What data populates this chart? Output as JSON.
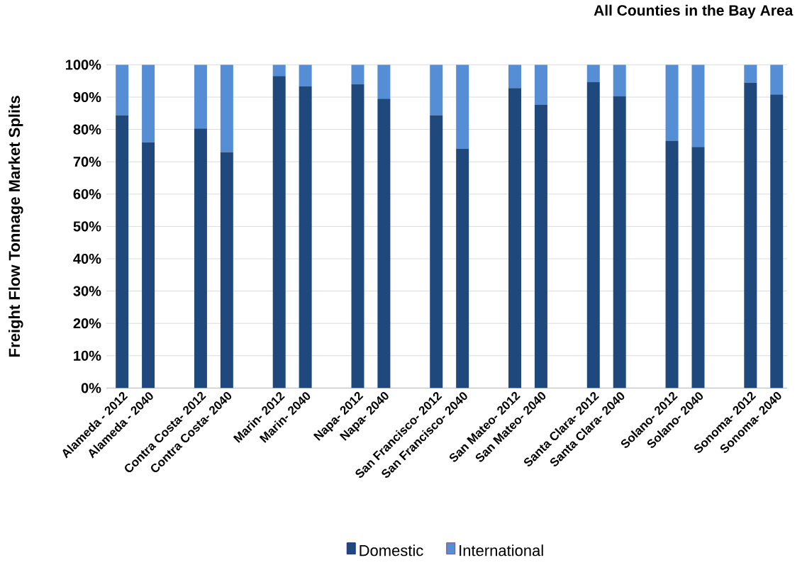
{
  "chart_data": {
    "type": "bar",
    "title": "All Counties in the Bay Area",
    "ylabel": "Freight Flow Tonnage Market Splits",
    "categories": [
      "Alameda - 2012",
      "Alameda - 2040",
      null,
      "Contra Costa- 2012",
      "Contra Costa- 2040",
      null,
      "Marin- 2012",
      "Marin- 2040",
      null,
      "Napa- 2012",
      "Napa- 2040",
      null,
      "San Francisco- 2012",
      "San Francisco- 2040",
      null,
      "San Mateo- 2012",
      "San Mateo- 2040",
      null,
      "Santa Clara- 2012",
      "Santa Clara- 2040",
      null,
      "Solano- 2012",
      "Solano- 2040",
      null,
      "Sonoma- 2012",
      "Sonoma- 2040"
    ],
    "series": [
      {
        "name": "Domestic",
        "color": "#1f497d",
        "values": [
          84.4,
          76,
          null,
          80.3,
          73,
          null,
          96.5,
          93.4,
          null,
          94,
          89.5,
          null,
          84.4,
          74,
          null,
          92.8,
          87.7,
          null,
          94.7,
          90.3,
          null,
          76.5,
          74.6,
          null,
          94.5,
          90.8
        ]
      },
      {
        "name": "International",
        "color": "#558ed5",
        "values": [
          15.6,
          24,
          null,
          19.7,
          27,
          null,
          3.5,
          6.6,
          null,
          6,
          10.5,
          null,
          15.6,
          26,
          null,
          7.2,
          12.3,
          null,
          5.3,
          9.7,
          null,
          23.5,
          25.4,
          null,
          5.5,
          9.2
        ]
      }
    ],
    "stacked": true,
    "ylim": [
      0,
      100
    ],
    "yticks": [
      {
        "value": 0,
        "label": "0%"
      },
      {
        "value": 10,
        "label": "10%"
      },
      {
        "value": 20,
        "label": "20%"
      },
      {
        "value": 30,
        "label": "30%"
      },
      {
        "value": 40,
        "label": "40%"
      },
      {
        "value": 50,
        "label": "50%"
      },
      {
        "value": 60,
        "label": "60%"
      },
      {
        "value": 70,
        "label": "70%"
      },
      {
        "value": 80,
        "label": "80%"
      },
      {
        "value": 90,
        "label": "90%"
      },
      {
        "value": 100,
        "label": "100%"
      }
    ],
    "grid": "y",
    "legend": "bottom"
  }
}
